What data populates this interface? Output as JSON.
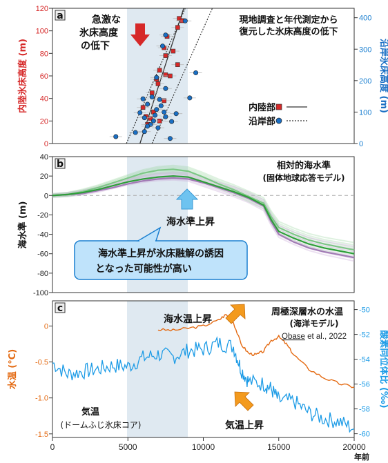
{
  "colors": {
    "red": "#d62828",
    "blue": "#1a6fc4",
    "purple": "#8b5a9b",
    "green": "#2e9e3a",
    "orange": "#e46a12",
    "cyan": "#1c9be6",
    "band": "#dfe9f1",
    "callout": "#bfe3fb",
    "callout_border": "#1a7fd0"
  },
  "panel_a": {
    "label": "a",
    "title_line1": "現地調査と年代測定から",
    "title_line2": "復元した氷床高度の低下",
    "annot_line1": "急激な",
    "annot_line2": "氷床高度",
    "annot_line3": "の低下",
    "ylabel": "内陸氷床高度 (m)",
    "ylabel2": "沿岸氷床高度 (m)",
    "yticks": [
      "0",
      "20",
      "40",
      "60",
      "80",
      "100",
      "120"
    ],
    "yticks2": [
      "0",
      "100",
      "200",
      "300",
      "400"
    ],
    "legend_inland": "内陸部",
    "legend_coast": "沿岸部"
  },
  "panel_b": {
    "label": "b",
    "title_line1": "相対的海水準",
    "title_line2": "(固体地球応答モデル)",
    "ylabel": "海水準 (m)",
    "yticks": [
      "40",
      "20",
      "0",
      "-20",
      "-40",
      "-60",
      "-80",
      "-100"
    ],
    "annot_rise": "海水準上昇",
    "callout_line1": "海水準上昇が氷床融解の誘因",
    "callout_line2": "となった可能性が高い"
  },
  "panel_c": {
    "label": "c",
    "title_line1": "周極深層水の水温",
    "title_line2": "(海洋モデル)",
    "citation_name": "Obase",
    "citation_rest": " et al., 2022",
    "annot_ocean": "海水温上昇",
    "annot_air": "気温上昇",
    "air_line1": "気温",
    "air_line2": "(ドームふじ氷床コア)",
    "ylabel": "水温 (°C)",
    "ylabel2": "酸素同位体比 (‰)",
    "yticks": [
      "0",
      "-0.5",
      "-1.0",
      "-1.5"
    ],
    "yticks2": [
      "-50",
      "-52",
      "-54",
      "-56",
      "-58",
      "-60"
    ]
  },
  "xaxis": {
    "ticks": [
      "0",
      "5000",
      "10000",
      "15000",
      "20000"
    ],
    "unit": "年前"
  },
  "chart_data": [
    {
      "type": "scatter",
      "title": "現地調査と年代測定から復元した氷床高度の低下",
      "xlabel": "年前",
      "ylabel": "内陸氷床高度 (m)",
      "ylabel_right": "沿岸氷床高度 (m)",
      "xlim": [
        0,
        20000
      ],
      "ylim": [
        0,
        120
      ],
      "ylim_right": [
        0,
        430
      ],
      "highlight_band": [
        5000,
        9000
      ],
      "series": [
        {
          "name": "内陸部",
          "marker": "square",
          "axis": "left",
          "points": [
            [
              8400,
              111
            ],
            [
              8600,
              109
            ],
            [
              8300,
              103
            ],
            [
              7600,
              95
            ],
            [
              7400,
              85
            ],
            [
              8000,
              82
            ],
            [
              7500,
              78
            ],
            [
              8300,
              70
            ],
            [
              7100,
              65
            ],
            [
              7500,
              61
            ],
            [
              7800,
              60
            ],
            [
              6900,
              57
            ],
            [
              7000,
              53
            ],
            [
              6600,
              45
            ],
            [
              7400,
              38
            ],
            [
              6000,
              32
            ],
            [
              6700,
              28
            ],
            [
              6200,
              24
            ],
            [
              6500,
              22
            ],
            [
              6300,
              17
            ],
            [
              7100,
              20
            ]
          ]
        },
        {
          "name": "沿岸部",
          "marker": "circle",
          "axis": "right",
          "points": [
            [
              8800,
              390
            ],
            [
              7500,
              345
            ],
            [
              7300,
              310
            ],
            [
              9500,
              225
            ],
            [
              6900,
              210
            ],
            [
              7500,
              175
            ],
            [
              9100,
              145
            ],
            [
              6600,
              148
            ],
            [
              6000,
              142
            ],
            [
              7100,
              140
            ],
            [
              6300,
              125
            ],
            [
              7200,
              120
            ],
            [
              6900,
              108
            ],
            [
              5800,
              98
            ],
            [
              6800,
              90
            ],
            [
              7500,
              85
            ],
            [
              6100,
              82
            ],
            [
              6700,
              72
            ],
            [
              7900,
              70
            ],
            [
              6500,
              60
            ],
            [
              6300,
              55
            ],
            [
              7000,
              50
            ],
            [
              5500,
              35
            ],
            [
              4200,
              22
            ],
            [
              7800,
              16
            ],
            [
              6100,
              38
            ],
            [
              7400,
              100
            ],
            [
              8200,
              95
            ]
          ]
        }
      ],
      "fit_lines": [
        "内陸部",
        "沿岸部"
      ]
    },
    {
      "type": "line",
      "title": "相対的海水準 (固体地球応答モデル)",
      "ylabel": "海水準 (m)",
      "xlabel": "年前",
      "xlim": [
        0,
        20000
      ],
      "ylim": [
        -100,
        40
      ],
      "x": [
        0,
        1000,
        2000,
        3000,
        4000,
        5000,
        6000,
        7000,
        8000,
        9000,
        10000,
        11000,
        12000,
        13000,
        14000,
        14500,
        15000,
        16000,
        17000,
        18000,
        19000,
        20000
      ],
      "series": [
        {
          "values": [
            0,
            1,
            3,
            6,
            10,
            14,
            17,
            19,
            20,
            19,
            14,
            9,
            4,
            -2,
            -10,
            -25,
            -37,
            -44,
            -50,
            -54,
            -57,
            -60
          ]
        },
        {
          "values": [
            0,
            1,
            2,
            5,
            8,
            12,
            15,
            17,
            18,
            17,
            13,
            8,
            3,
            -3,
            -11,
            -27,
            -40,
            -48,
            -54,
            -58,
            -61,
            -64
          ]
        },
        {
          "values": [
            0,
            1,
            4,
            8,
            13,
            18,
            23,
            26,
            27,
            25,
            19,
            12,
            6,
            -1,
            -8,
            -22,
            -33,
            -40,
            -46,
            -50,
            -53,
            -56
          ]
        }
      ]
    },
    {
      "type": "line",
      "title": "周極深層水の水温 (海洋モデル)",
      "ylabel": "水温 (°C)",
      "ylabel_right": "酸素同位体比 (‰)",
      "xlabel": "年前",
      "xlim": [
        0,
        20000
      ],
      "ylim": [
        -1.55,
        0.35
      ],
      "ylim_right": [
        -60.3,
        -49.3
      ],
      "x_ocean": [
        7000,
        8000,
        9000,
        10000,
        11000,
        11500,
        12000,
        12500,
        13000,
        13500,
        14000,
        14500,
        15000,
        15500,
        16000,
        17000,
        18000,
        19000,
        20000
      ],
      "ocean_temp": [
        -0.05,
        -0.06,
        -0.03,
        0.0,
        0.08,
        0.16,
        0.05,
        -0.25,
        -0.38,
        -0.4,
        -0.35,
        -0.2,
        -0.15,
        -0.25,
        -0.4,
        -0.6,
        -0.72,
        -0.8,
        -0.85
      ],
      "x_air": [
        0,
        1000,
        2000,
        3000,
        4000,
        5000,
        6000,
        7000,
        8000,
        9000,
        10000,
        11000,
        12000,
        12500,
        13000,
        14000,
        14500,
        15000,
        16000,
        17000,
        18000,
        19000,
        20000
      ],
      "air_d18O": [
        -54.3,
        -55.2,
        -55.0,
        -54.8,
        -54.5,
        -54.6,
        -53.9,
        -53.6,
        -53.8,
        -53.3,
        -53.2,
        -52.7,
        -53.0,
        -54.8,
        -55.8,
        -56.0,
        -56.4,
        -57.3,
        -57.4,
        -58.3,
        -58.8,
        -59.0,
        -59.6
      ]
    }
  ]
}
